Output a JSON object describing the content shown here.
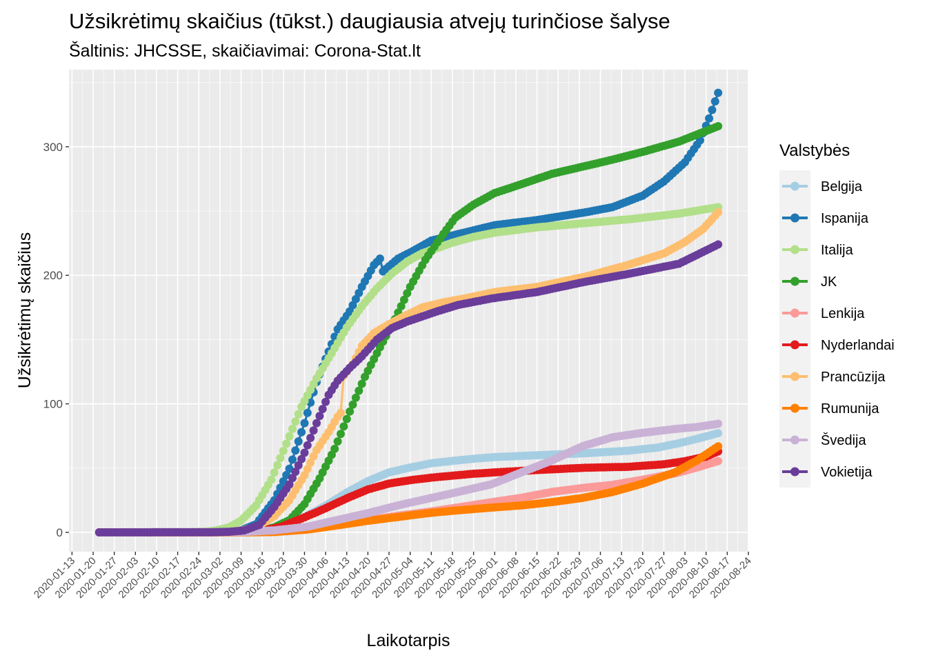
{
  "chart_data": {
    "type": "line",
    "title": "Užsikrėtimų skaičius (tūkst.) daugiausia atvejų turinčiose šalyse",
    "subtitle": "Šaltinis: JHCSSE, skaičiavimai: Corona-Stat.lt",
    "xlabel": "Laikotarpis",
    "ylabel": "Užsikrėtimų skaičius",
    "xlim": [
      "2020-01-12",
      "2020-08-24"
    ],
    "ylim": [
      -15,
      360
    ],
    "grid": true,
    "legend": {
      "title": "Valstybės",
      "placement": "right"
    },
    "x_ticks": [
      "2020-01-13",
      "2020-01-20",
      "2020-01-27",
      "2020-02-03",
      "2020-02-10",
      "2020-02-17",
      "2020-02-24",
      "2020-03-02",
      "2020-03-09",
      "2020-03-16",
      "2020-03-23",
      "2020-03-30",
      "2020-04-06",
      "2020-04-13",
      "2020-04-20",
      "2020-04-27",
      "2020-05-04",
      "2020-05-11",
      "2020-05-18",
      "2020-05-25",
      "2020-06-01",
      "2020-06-08",
      "2020-06-15",
      "2020-06-22",
      "2020-06-29",
      "2020-07-06",
      "2020-07-13",
      "2020-07-20",
      "2020-07-27",
      "2020-08-03",
      "2020-08-10",
      "2020-08-17",
      "2020-08-24"
    ],
    "y_ticks": [
      0,
      100,
      200,
      300
    ],
    "start_date": "2020-01-22",
    "end_date": "2020-08-14",
    "series": [
      {
        "name": "Belgija",
        "color": "#a6cee3",
        "points": [
          [
            "2020-01-22",
            0
          ],
          [
            "2020-03-01",
            0
          ],
          [
            "2020-03-10",
            0.3
          ],
          [
            "2020-03-20",
            2.8
          ],
          [
            "2020-03-30",
            11.9
          ],
          [
            "2020-04-06",
            20.8
          ],
          [
            "2020-04-13",
            31
          ],
          [
            "2020-04-20",
            39.9
          ],
          [
            "2020-04-27",
            46.7
          ],
          [
            "2020-05-04",
            50.5
          ],
          [
            "2020-05-11",
            53.8
          ],
          [
            "2020-05-18",
            55.6
          ],
          [
            "2020-05-25",
            57.3
          ],
          [
            "2020-06-01",
            58.6
          ],
          [
            "2020-06-15",
            60
          ],
          [
            "2020-07-01",
            61.6
          ],
          [
            "2020-07-15",
            63.5
          ],
          [
            "2020-07-25",
            66
          ],
          [
            "2020-08-01",
            69.4
          ],
          [
            "2020-08-07",
            72.8
          ],
          [
            "2020-08-14",
            77.2
          ]
        ]
      },
      {
        "name": "Ispanija",
        "color": "#1f78b4",
        "points": [
          [
            "2020-01-22",
            0
          ],
          [
            "2020-03-01",
            0.1
          ],
          [
            "2020-03-08",
            0.7
          ],
          [
            "2020-03-14",
            6.4
          ],
          [
            "2020-03-20",
            25
          ],
          [
            "2020-03-25",
            49.5
          ],
          [
            "2020-03-30",
            85
          ],
          [
            "2020-04-03",
            117
          ],
          [
            "2020-04-06",
            135
          ],
          [
            "2020-04-10",
            158
          ],
          [
            "2020-04-14",
            172
          ],
          [
            "2020-04-18",
            191
          ],
          [
            "2020-04-22",
            208
          ],
          [
            "2020-04-24",
            213
          ],
          [
            "2020-04-25",
            203
          ],
          [
            "2020-04-30",
            213
          ],
          [
            "2020-05-05",
            219
          ],
          [
            "2020-05-11",
            227
          ],
          [
            "2020-05-18",
            231
          ],
          [
            "2020-05-25",
            235
          ],
          [
            "2020-06-01",
            239
          ],
          [
            "2020-06-15",
            243
          ],
          [
            "2020-07-01",
            249
          ],
          [
            "2020-07-10",
            253
          ],
          [
            "2020-07-20",
            262
          ],
          [
            "2020-07-27",
            273
          ],
          [
            "2020-08-03",
            288
          ],
          [
            "2020-08-08",
            305
          ],
          [
            "2020-08-11",
            322
          ],
          [
            "2020-08-14",
            342
          ]
        ]
      },
      {
        "name": "Italija",
        "color": "#b2df8a",
        "points": [
          [
            "2020-01-22",
            0
          ],
          [
            "2020-02-20",
            0
          ],
          [
            "2020-02-27",
            0.7
          ],
          [
            "2020-03-01",
            1.7
          ],
          [
            "2020-03-05",
            3.9
          ],
          [
            "2020-03-09",
            9.2
          ],
          [
            "2020-03-14",
            21
          ],
          [
            "2020-03-19",
            41
          ],
          [
            "2020-03-24",
            69
          ],
          [
            "2020-03-29",
            97.7
          ],
          [
            "2020-04-03",
            119.8
          ],
          [
            "2020-04-08",
            139.4
          ],
          [
            "2020-04-13",
            159.5
          ],
          [
            "2020-04-18",
            175.9
          ],
          [
            "2020-04-23",
            189.9
          ],
          [
            "2020-04-28",
            201.5
          ],
          [
            "2020-05-03",
            210.7
          ],
          [
            "2020-05-08",
            217.2
          ],
          [
            "2020-05-13",
            221.2
          ],
          [
            "2020-05-18",
            225.4
          ],
          [
            "2020-05-25",
            229.9
          ],
          [
            "2020-06-01",
            233.2
          ],
          [
            "2020-06-15",
            237.3
          ],
          [
            "2020-07-01",
            240.6
          ],
          [
            "2020-07-15",
            243.5
          ],
          [
            "2020-08-01",
            248
          ],
          [
            "2020-08-14",
            253
          ]
        ]
      },
      {
        "name": "JK",
        "color": "#33a02c",
        "points": [
          [
            "2020-01-22",
            0
          ],
          [
            "2020-03-08",
            0.3
          ],
          [
            "2020-03-13",
            0.8
          ],
          [
            "2020-03-16",
            1.5
          ],
          [
            "2020-03-20",
            4
          ],
          [
            "2020-03-25",
            9.5
          ],
          [
            "2020-03-30",
            22
          ],
          [
            "2020-04-04",
            42
          ],
          [
            "2020-04-09",
            65
          ],
          [
            "2020-04-14",
            94
          ],
          [
            "2020-04-19",
            121
          ],
          [
            "2020-04-24",
            144
          ],
          [
            "2020-04-29",
            166
          ],
          [
            "2020-05-04",
            191
          ],
          [
            "2020-05-09",
            212
          ],
          [
            "2020-05-14",
            229
          ],
          [
            "2020-05-19",
            245
          ],
          [
            "2020-05-25",
            255
          ],
          [
            "2020-06-01",
            264
          ],
          [
            "2020-06-10",
            271
          ],
          [
            "2020-06-20",
            279
          ],
          [
            "2020-07-01",
            285
          ],
          [
            "2020-07-10",
            290
          ],
          [
            "2020-07-20",
            296
          ],
          [
            "2020-08-01",
            304
          ],
          [
            "2020-08-14",
            316
          ]
        ]
      },
      {
        "name": "Lenkija",
        "color": "#fb9a99",
        "points": [
          [
            "2020-01-22",
            0
          ],
          [
            "2020-03-10",
            0
          ],
          [
            "2020-03-20",
            0.4
          ],
          [
            "2020-03-30",
            2
          ],
          [
            "2020-04-10",
            6
          ],
          [
            "2020-04-20",
            9.5
          ],
          [
            "2020-04-30",
            13
          ],
          [
            "2020-05-10",
            16
          ],
          [
            "2020-05-20",
            19.5
          ],
          [
            "2020-05-31",
            23.5
          ],
          [
            "2020-06-10",
            27
          ],
          [
            "2020-06-20",
            31.5
          ],
          [
            "2020-06-30",
            34.5
          ],
          [
            "2020-07-10",
            37
          ],
          [
            "2020-07-20",
            41
          ],
          [
            "2020-07-31",
            46
          ],
          [
            "2020-08-07",
            50.5
          ],
          [
            "2020-08-14",
            55.5
          ]
        ]
      },
      {
        "name": "Nyderlandai",
        "color": "#e31a1c",
        "points": [
          [
            "2020-01-22",
            0
          ],
          [
            "2020-03-05",
            0.1
          ],
          [
            "2020-03-15",
            1.1
          ],
          [
            "2020-03-22",
            4.2
          ],
          [
            "2020-03-30",
            11.7
          ],
          [
            "2020-04-06",
            18.8
          ],
          [
            "2020-04-13",
            26.5
          ],
          [
            "2020-04-20",
            33.4
          ],
          [
            "2020-04-27",
            38
          ],
          [
            "2020-05-04",
            40.6
          ],
          [
            "2020-05-11",
            42.6
          ],
          [
            "2020-05-18",
            44.1
          ],
          [
            "2020-05-25",
            45.6
          ],
          [
            "2020-06-01",
            46.7
          ],
          [
            "2020-06-15",
            48.5
          ],
          [
            "2020-07-01",
            50.3
          ],
          [
            "2020-07-15",
            51
          ],
          [
            "2020-07-27",
            53
          ],
          [
            "2020-08-03",
            55.4
          ],
          [
            "2020-08-10",
            59
          ],
          [
            "2020-08-14",
            63
          ]
        ]
      },
      {
        "name": "Prancūzija",
        "color": "#fdbf6f",
        "points": [
          [
            "2020-01-22",
            0
          ],
          [
            "2020-02-28",
            0.1
          ],
          [
            "2020-03-05",
            0.4
          ],
          [
            "2020-03-10",
            1.8
          ],
          [
            "2020-03-15",
            5.4
          ],
          [
            "2020-03-20",
            12.6
          ],
          [
            "2020-03-25",
            25
          ],
          [
            "2020-03-30",
            44.5
          ],
          [
            "2020-04-03",
            64
          ],
          [
            "2020-04-07",
            78
          ],
          [
            "2020-04-10",
            90
          ],
          [
            "2020-04-11",
            93
          ],
          [
            "2020-04-12",
            122
          ],
          [
            "2020-04-15",
            131
          ],
          [
            "2020-04-18",
            145
          ],
          [
            "2020-04-22",
            155
          ],
          [
            "2020-04-27",
            162
          ],
          [
            "2020-05-01",
            167
          ],
          [
            "2020-05-08",
            175
          ],
          [
            "2020-05-15",
            179
          ],
          [
            "2020-05-22",
            182
          ],
          [
            "2020-06-01",
            187
          ],
          [
            "2020-06-15",
            191
          ],
          [
            "2020-07-01",
            199
          ],
          [
            "2020-07-15",
            208
          ],
          [
            "2020-07-27",
            217
          ],
          [
            "2020-08-03",
            226
          ],
          [
            "2020-08-09",
            236
          ],
          [
            "2020-08-14",
            249
          ]
        ]
      },
      {
        "name": "Rumunija",
        "color": "#ff7f00",
        "points": [
          [
            "2020-01-22",
            0
          ],
          [
            "2020-03-10",
            0
          ],
          [
            "2020-03-20",
            0.3
          ],
          [
            "2020-03-31",
            2.2
          ],
          [
            "2020-04-10",
            5.5
          ],
          [
            "2020-04-20",
            9
          ],
          [
            "2020-04-30",
            12
          ],
          [
            "2020-05-10",
            15
          ],
          [
            "2020-05-20",
            17.2
          ],
          [
            "2020-05-31",
            19.3
          ],
          [
            "2020-06-10",
            21
          ],
          [
            "2020-06-20",
            23.6
          ],
          [
            "2020-06-30",
            26.8
          ],
          [
            "2020-07-10",
            31.4
          ],
          [
            "2020-07-20",
            38
          ],
          [
            "2020-07-31",
            47
          ],
          [
            "2020-08-07",
            56
          ],
          [
            "2020-08-14",
            67
          ]
        ]
      },
      {
        "name": "Švedija",
        "color": "#cab2d6",
        "points": [
          [
            "2020-01-22",
            0
          ],
          [
            "2020-03-10",
            0.3
          ],
          [
            "2020-03-20",
            1.6
          ],
          [
            "2020-03-31",
            4.4
          ],
          [
            "2020-04-10",
            9.7
          ],
          [
            "2020-04-20",
            15
          ],
          [
            "2020-04-30",
            21
          ],
          [
            "2020-05-10",
            26.3
          ],
          [
            "2020-05-20",
            31.5
          ],
          [
            "2020-05-31",
            37.5
          ],
          [
            "2020-06-10",
            46.8
          ],
          [
            "2020-06-20",
            56
          ],
          [
            "2020-06-30",
            67
          ],
          [
            "2020-07-10",
            74
          ],
          [
            "2020-07-20",
            77.5
          ],
          [
            "2020-07-31",
            80.5
          ],
          [
            "2020-08-07",
            82
          ],
          [
            "2020-08-14",
            84.5
          ]
        ]
      },
      {
        "name": "Vokietija",
        "color": "#6a3d9a",
        "points": [
          [
            "2020-01-22",
            0
          ],
          [
            "2020-02-28",
            0.1
          ],
          [
            "2020-03-05",
            0.5
          ],
          [
            "2020-03-10",
            1.5
          ],
          [
            "2020-03-15",
            5.8
          ],
          [
            "2020-03-20",
            19.8
          ],
          [
            "2020-03-25",
            37.3
          ],
          [
            "2020-03-30",
            62
          ],
          [
            "2020-04-03",
            85
          ],
          [
            "2020-04-07",
            107
          ],
          [
            "2020-04-10",
            118
          ],
          [
            "2020-04-14",
            128
          ],
          [
            "2020-04-18",
            137
          ],
          [
            "2020-04-23",
            150
          ],
          [
            "2020-04-28",
            159
          ],
          [
            "2020-05-03",
            164
          ],
          [
            "2020-05-08",
            168
          ],
          [
            "2020-05-13",
            172
          ],
          [
            "2020-05-20",
            177
          ],
          [
            "2020-05-31",
            182
          ],
          [
            "2020-06-15",
            187
          ],
          [
            "2020-07-01",
            195
          ],
          [
            "2020-07-15",
            201
          ],
          [
            "2020-08-01",
            209
          ],
          [
            "2020-08-14",
            224
          ]
        ]
      }
    ]
  }
}
